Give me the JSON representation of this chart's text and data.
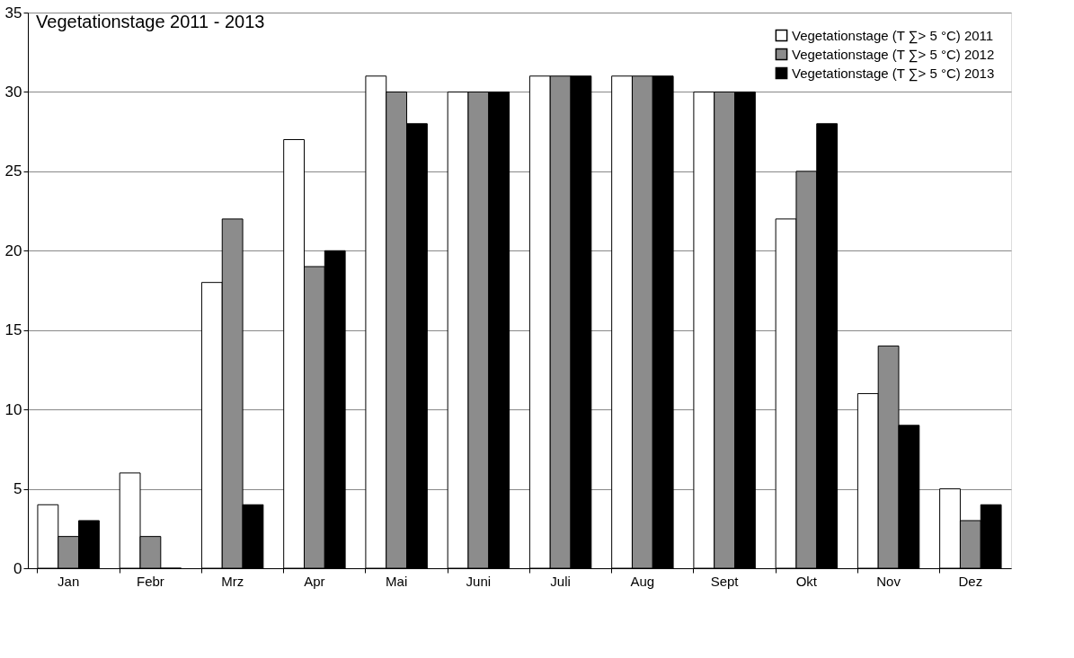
{
  "chart_data": {
    "type": "bar",
    "title": "Vegetationstage 2011 - 2013",
    "categories": [
      "Jan",
      "Febr",
      "Mrz",
      "Apr",
      "Mai",
      "Juni",
      "Juli",
      "Aug",
      "Sept",
      "Okt",
      "Nov",
      "Dez"
    ],
    "series": [
      {
        "name": "Vegetationstage (T ∑> 5 °C) 2011",
        "color": "#ffffff",
        "values": [
          4,
          6,
          18,
          27,
          31,
          30,
          31,
          31,
          30,
          22,
          11,
          5
        ]
      },
      {
        "name": "Vegetationstage (T ∑> 5 °C) 2012",
        "color": "#8c8c8c",
        "values": [
          2,
          2,
          22,
          19,
          30,
          30,
          31,
          31,
          30,
          25,
          14,
          3
        ]
      },
      {
        "name": "Vegetationstage (T ∑> 5 °C) 2013",
        "color": "#000000",
        "values": [
          3,
          0,
          4,
          20,
          28,
          30,
          31,
          31,
          30,
          28,
          9,
          4
        ]
      }
    ],
    "ylim": [
      0,
      35
    ],
    "yticks": [
      0,
      5,
      10,
      15,
      20,
      25,
      30,
      35
    ],
    "grid": "y",
    "legend": "top right"
  }
}
